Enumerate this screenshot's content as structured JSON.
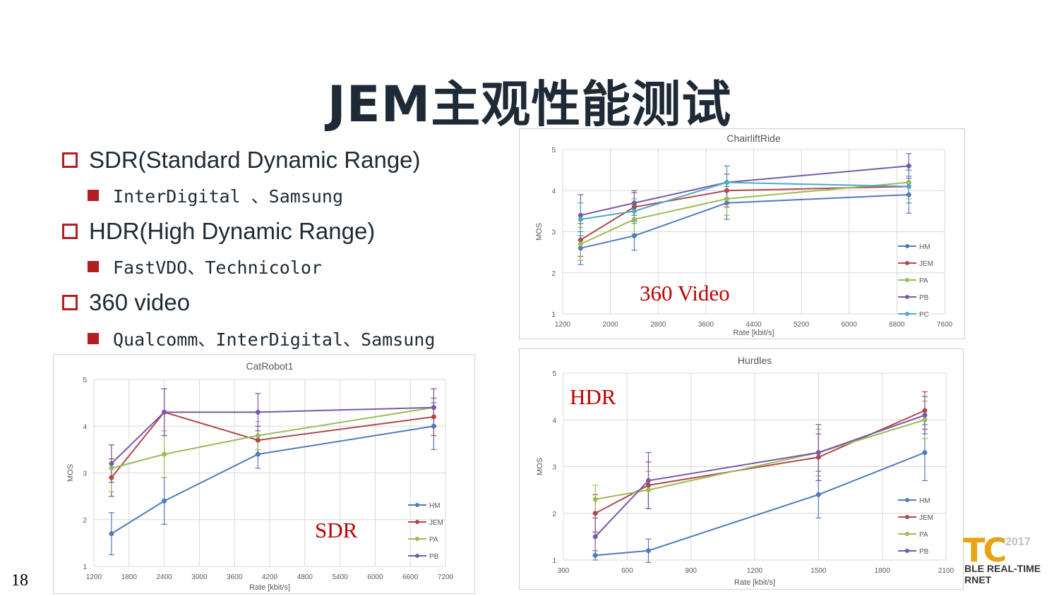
{
  "title": "JEM主观性能测试",
  "page_number": "18",
  "bullets": [
    {
      "label": "SDR(Standard Dynamic Range)",
      "sub": "InterDigital 、Samsung"
    },
    {
      "label": "HDR(High Dynamic Range)",
      "sub": "FastVDO、Technicolor"
    },
    {
      "label": "360 video",
      "sub": "Qualcomm、InterDigital、Samsung"
    }
  ],
  "overlays": {
    "sdr": "SDR",
    "hdr": "HDR",
    "video360": "360 Video"
  },
  "logo": {
    "mark": "TC",
    "year": "2017",
    "line1": "BLE REAL-TIME",
    "line2": "RNET"
  },
  "colors": {
    "HM": "#4f7bbf",
    "JEM": "#b04a4a",
    "PA": "#9bbb59",
    "PB": "#7a5aa8",
    "PC": "#4bacc6",
    "accent": "#b41e1e"
  },
  "chart_data": [
    {
      "id": "catrobot",
      "type": "line",
      "title": "CatRobot1",
      "xlabel": "Rate [kbit/s]",
      "ylabel": "MOS",
      "xlim": [
        1200,
        7200
      ],
      "ylim": [
        1,
        5
      ],
      "xticks": [
        1200,
        1800,
        2400,
        3000,
        3600,
        4200,
        4800,
        5400,
        6000,
        6600,
        7200
      ],
      "yticks": [
        1,
        2,
        3,
        4,
        5
      ],
      "grid": true,
      "legend": "bottom-right",
      "series": [
        {
          "name": "HM",
          "x": [
            1500,
            2400,
            4000,
            7000
          ],
          "y": [
            1.7,
            2.4,
            3.4,
            4.0
          ],
          "err": [
            0.45,
            0.5,
            0.3,
            0.5
          ]
        },
        {
          "name": "JEM",
          "x": [
            1500,
            2400,
            4000,
            7000
          ],
          "y": [
            2.9,
            4.3,
            3.7,
            4.2
          ],
          "err": [
            0.4,
            0.5,
            0.3,
            0.4
          ]
        },
        {
          "name": "PA",
          "x": [
            1500,
            2400,
            4000,
            7000
          ],
          "y": [
            3.1,
            3.4,
            3.8,
            4.4
          ],
          "err": [
            0.5,
            0.5,
            0.3,
            0.4
          ]
        },
        {
          "name": "PB",
          "x": [
            1500,
            2400,
            4000,
            7000
          ],
          "y": [
            3.2,
            4.3,
            4.3,
            4.4
          ],
          "err": [
            0.4,
            0.5,
            0.4,
            0.4
          ]
        }
      ]
    },
    {
      "id": "chairlift",
      "type": "line",
      "title": "ChairliftRide",
      "xlabel": "Rate [kbit/s]",
      "ylabel": "MOS",
      "xlim": [
        1200,
        7600
      ],
      "ylim": [
        1,
        5
      ],
      "xticks": [
        1200,
        2000,
        2800,
        3600,
        4400,
        5200,
        6000,
        6800,
        7600
      ],
      "yticks": [
        1,
        2,
        3,
        4,
        5
      ],
      "grid": true,
      "legend": "bottom-right",
      "series": [
        {
          "name": "HM",
          "x": [
            1500,
            2400,
            3950,
            7000
          ],
          "y": [
            2.6,
            2.9,
            3.7,
            3.9
          ],
          "err": [
            0.4,
            0.35,
            0.4,
            0.45
          ]
        },
        {
          "name": "JEM",
          "x": [
            1500,
            2400,
            3950,
            7000
          ],
          "y": [
            2.8,
            3.6,
            4.0,
            4.1
          ],
          "err": [
            0.4,
            0.35,
            0.4,
            0.4
          ]
        },
        {
          "name": "PA",
          "x": [
            1500,
            2400,
            3950,
            7000
          ],
          "y": [
            2.7,
            3.3,
            3.8,
            4.2
          ],
          "err": [
            0.4,
            0.35,
            0.4,
            0.4
          ]
        },
        {
          "name": "PB",
          "x": [
            1500,
            2400,
            3950,
            7000
          ],
          "y": [
            3.4,
            3.7,
            4.2,
            4.6
          ],
          "err": [
            0.5,
            0.3,
            0.4,
            0.3
          ]
        },
        {
          "name": "PC",
          "x": [
            1500,
            2400,
            3950,
            7000
          ],
          "y": [
            3.3,
            3.5,
            4.2,
            4.1
          ],
          "err": [
            0.4,
            0.3,
            0.4,
            0.4
          ]
        }
      ]
    },
    {
      "id": "hurdles",
      "type": "line",
      "title": "Hurdles",
      "xlabel": "Rate [kbit/s]",
      "ylabel": "MOS",
      "xlim": [
        300,
        2100
      ],
      "ylim": [
        1,
        5
      ],
      "xticks": [
        300,
        600,
        900,
        1200,
        1500,
        1800,
        2100
      ],
      "yticks": [
        1,
        2,
        3,
        4,
        5
      ],
      "grid": true,
      "legend": "bottom-right",
      "series": [
        {
          "name": "HM",
          "x": [
            450,
            700,
            1500,
            2000
          ],
          "y": [
            1.1,
            1.2,
            2.4,
            3.3
          ],
          "err": [
            0.1,
            0.25,
            0.5,
            0.6
          ]
        },
        {
          "name": "JEM",
          "x": [
            450,
            700,
            1500,
            2000
          ],
          "y": [
            2.0,
            2.6,
            3.2,
            4.2
          ],
          "err": [
            0.4,
            0.5,
            0.5,
            0.4
          ]
        },
        {
          "name": "PA",
          "x": [
            450,
            700,
            1500,
            2000
          ],
          "y": [
            2.3,
            2.5,
            3.3,
            4.0
          ],
          "err": [
            0.3,
            0.4,
            0.5,
            0.4
          ]
        },
        {
          "name": "PB",
          "x": [
            450,
            700,
            1500,
            2000
          ],
          "y": [
            1.5,
            2.7,
            3.3,
            4.1
          ],
          "err": [
            0.4,
            0.6,
            0.6,
            0.4
          ]
        }
      ]
    }
  ]
}
